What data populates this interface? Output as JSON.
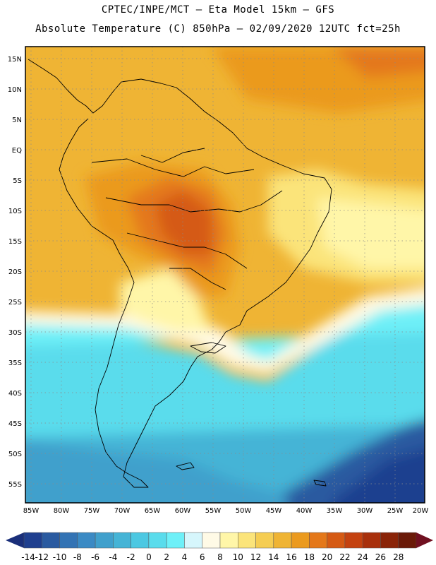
{
  "header": {
    "line1": "CPTEC/INPE/MCT –  Eta Model 15km – GFS",
    "line2": "Absolute Temperature (C) 850hPa – 02/09/2020 12UTC fct=25h"
  },
  "map": {
    "lat_labels": [
      "15N",
      "10N",
      "5N",
      "EQ",
      "5S",
      "10S",
      "15S",
      "20S",
      "25S",
      "30S",
      "35S",
      "40S",
      "45S",
      "50S",
      "55S"
    ],
    "lon_labels": [
      "85W",
      "80W",
      "75W",
      "70W",
      "65W",
      "60W",
      "55W",
      "50W",
      "45W",
      "40W",
      "35W",
      "30W",
      "25W",
      "20W"
    ]
  },
  "colorbar": {
    "labels": [
      "-14",
      "-12",
      "-10",
      "-8",
      "-6",
      "-4",
      "-2",
      "0",
      "2",
      "4",
      "6",
      "8",
      "10",
      "12",
      "14",
      "16",
      "18",
      "20",
      "22",
      "24",
      "26",
      "28"
    ],
    "colors": [
      "#1f3f8f",
      "#2a5aa0",
      "#3373b4",
      "#3b8ac4",
      "#40a0cc",
      "#45b4d6",
      "#4cc8e2",
      "#5adcec",
      "#6ef0f8",
      "#d6f6fc",
      "#fffae6",
      "#fff6a8",
      "#fbe47a",
      "#f5cd52",
      "#efb434",
      "#eb9a1e",
      "#e4781a",
      "#d55a14",
      "#c44210",
      "#a8300c",
      "#8a2408",
      "#6a1a08"
    ],
    "end_low": "#1a2f7a",
    "end_high": "#701020"
  }
}
